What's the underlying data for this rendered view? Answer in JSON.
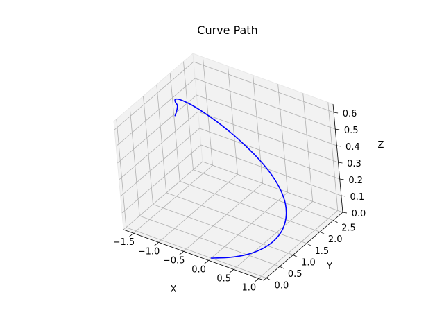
{
  "figure": {
    "background": "#ffffff",
    "pane_color": "#f2f2f2",
    "pane_edge_color": "#e6e6e6",
    "grid_color": "#b0b0b0"
  },
  "chart_data": {
    "type": "line3d",
    "title": "Curve Path",
    "xlabel": "X",
    "ylabel": "Y",
    "zlabel": "Z",
    "xlim": [
      -1.7,
      1.1
    ],
    "ylim": [
      -0.1,
      2.85
    ],
    "zlim": [
      0.0,
      0.65
    ],
    "xticks": [
      -1.5,
      -1.0,
      -0.5,
      0.0,
      0.5,
      1.0
    ],
    "xtick_labels": [
      "−1.5",
      "−1.0",
      "−0.5",
      "0.0",
      "0.5",
      "1.0"
    ],
    "yticks": [
      0.0,
      0.5,
      1.0,
      1.5,
      2.0,
      2.5
    ],
    "ytick_labels": [
      "0.0",
      "0.5",
      "1.0",
      "1.5",
      "2.0",
      "2.5"
    ],
    "zticks": [
      0.0,
      0.1,
      0.2,
      0.3,
      0.4,
      0.5,
      0.6
    ],
    "ztick_labels": [
      "0.0",
      "0.1",
      "0.2",
      "0.3",
      "0.4",
      "0.5",
      "0.6"
    ],
    "grid": true,
    "series": [
      {
        "color": "#0000ff",
        "x": [
          0.0,
          0.33,
          0.62,
          0.83,
          0.95,
          0.98,
          0.92,
          0.78,
          0.56,
          0.28,
          -0.04,
          -0.38,
          -0.71,
          -1.01,
          -1.26,
          -1.44,
          -1.55,
          -1.57,
          -1.52,
          -1.39,
          -1.21,
          -1.1,
          -1.02
        ],
        "y": [
          0.0,
          0.07,
          0.21,
          0.41,
          0.64,
          0.9,
          1.17,
          1.43,
          1.67,
          1.88,
          2.05,
          2.18,
          2.27,
          2.31,
          2.3,
          2.24,
          2.13,
          1.98,
          1.79,
          1.57,
          1.33,
          1.1,
          0.9
        ],
        "z": [
          0.0,
          0.03,
          0.06,
          0.09,
          0.12,
          0.15,
          0.18,
          0.21,
          0.24,
          0.27,
          0.3,
          0.33,
          0.36,
          0.39,
          0.42,
          0.45,
          0.48,
          0.51,
          0.54,
          0.57,
          0.6,
          0.61,
          0.62
        ]
      }
    ]
  }
}
